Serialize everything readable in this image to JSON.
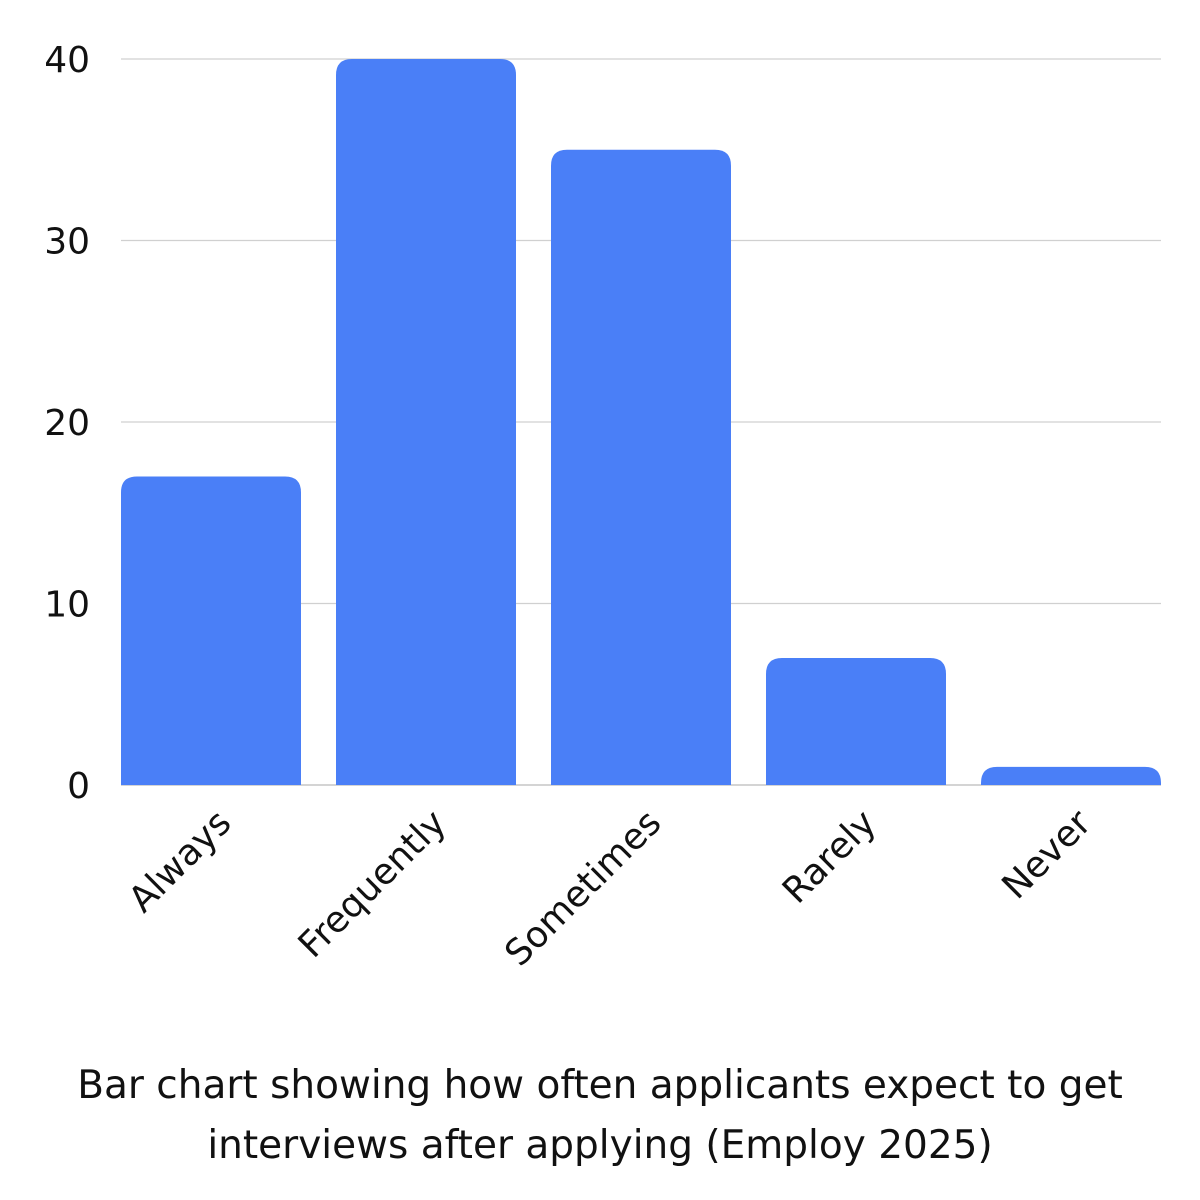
{
  "chart_data": {
    "type": "bar",
    "categories": [
      "Always",
      "Frequently",
      "Sometimes",
      "Rarely",
      "Never"
    ],
    "values": [
      17,
      40,
      35,
      7,
      1
    ],
    "title": "",
    "xlabel": "",
    "ylabel": "",
    "ylim": [
      0,
      40
    ],
    "yticks": [
      0,
      10,
      20,
      30,
      40
    ],
    "grid": true,
    "bar_color": "#4A7FF7"
  },
  "caption": "Bar chart showing how often applicants expect to get interviews after applying (Employ 2025)"
}
